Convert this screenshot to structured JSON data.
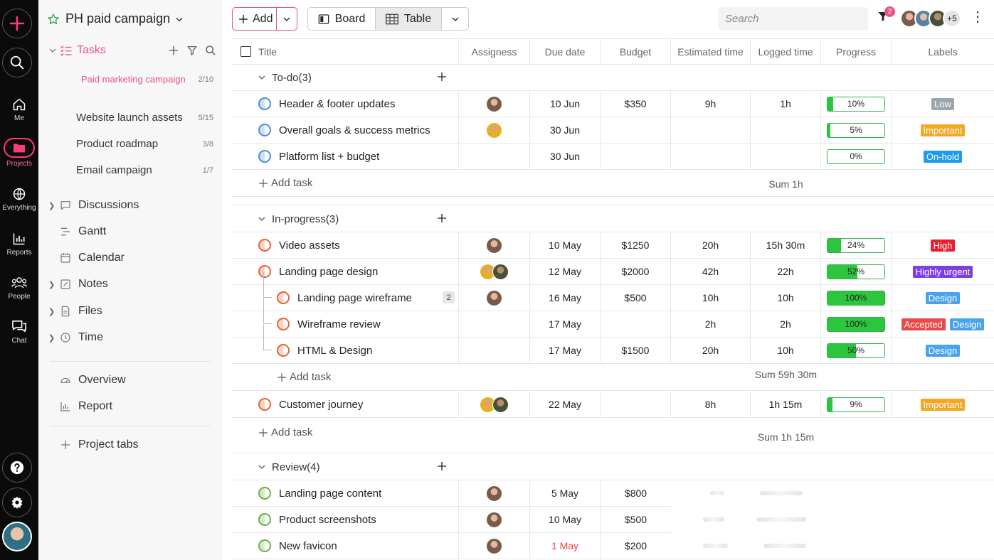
{
  "rail": {
    "items": [
      {
        "label": "Me",
        "icon": "home-icon"
      },
      {
        "label": "Projects",
        "icon": "folder-icon"
      },
      {
        "label": "Everything",
        "icon": "globe-icon"
      },
      {
        "label": "Reports",
        "icon": "bar-chart-icon"
      },
      {
        "label": "People",
        "icon": "people-icon"
      },
      {
        "label": "Chat",
        "icon": "chat-icon"
      }
    ],
    "accent": "#ff3b7a"
  },
  "sidebar": {
    "project_title": "PH paid campaign",
    "tasks_label": "Tasks",
    "task_lists": [
      {
        "label": "Paid marketing campaign",
        "count": "2/10"
      },
      {
        "label": "Website launch assets",
        "count": "5/15"
      },
      {
        "label": "Product roadmap",
        "count": "3/8"
      },
      {
        "label": "Email campaign",
        "count": "1/7"
      }
    ],
    "nav": [
      {
        "label": "Discussions",
        "icon": "chat-bubble-icon"
      },
      {
        "label": "Gantt",
        "icon": "gantt-icon"
      },
      {
        "label": "Calendar",
        "icon": "calendar-icon"
      },
      {
        "label": "Notes",
        "icon": "notes-icon"
      },
      {
        "label": "Files",
        "icon": "file-icon"
      },
      {
        "label": "Time",
        "icon": "clock-icon"
      }
    ],
    "overview_label": "Overview",
    "report_label": "Report",
    "project_tabs_label": "Project tabs"
  },
  "toolbar": {
    "add_label": "Add",
    "board_label": "Board",
    "table_label": "Table",
    "search_placeholder": "Search",
    "filter_count": "2",
    "more_members": "+5"
  },
  "table": {
    "columns": [
      "Title",
      "Assigness",
      "Due date",
      "Budget",
      "Estimated time",
      "Logged time",
      "Progress",
      "Labels"
    ],
    "groups": [
      {
        "name": "To-do(3)",
        "rows": [
          {
            "title": "Header & footer updates",
            "due": "10 Jun",
            "budget": "$350",
            "est": "9h",
            "logged": "1h",
            "progress": "10%",
            "labels": [
              "Low"
            ]
          },
          {
            "title": "Overall goals & success metrics",
            "due": "30 Jun",
            "budget": "",
            "est": "",
            "logged": "",
            "progress": "5%",
            "labels": [
              "Important"
            ]
          },
          {
            "title": "Platform list + budget",
            "due": "30 Jun",
            "budget": "",
            "est": "",
            "logged": "",
            "progress": "0%",
            "labels": [
              "On-hold"
            ]
          }
        ],
        "add_task": "Add task",
        "sum": "Sum 1h"
      },
      {
        "name": "In-progress(3)",
        "rows": [
          {
            "title": "Video assets",
            "due": "10 May",
            "budget": "$1250",
            "est": "20h",
            "logged": "15h 30m",
            "progress": "24%",
            "labels": [
              "High"
            ]
          },
          {
            "title": "Landing page design",
            "due": "12 May",
            "budget": "$2000",
            "est": "42h",
            "logged": "22h",
            "progress": "52%",
            "labels": [
              "Highly urgent"
            ]
          },
          {
            "title": "Landing page wireframe",
            "subcount": "2",
            "due": "16 May",
            "budget": "$500",
            "est": "10h",
            "logged": "10h",
            "progress": "100%",
            "labels": [
              "Design"
            ]
          },
          {
            "title": "Wireframe review",
            "due": "17 May",
            "budget": "",
            "est": "2h",
            "logged": "2h",
            "progress": "100%",
            "labels": [
              "Accepted",
              "Design"
            ]
          },
          {
            "title": "HTML & Design",
            "due": "17 May",
            "budget": "$1500",
            "est": "20h",
            "logged": "10h",
            "progress": "50%",
            "labels": [
              "Design"
            ]
          }
        ],
        "sub_add_task": "Add task",
        "sub_sum": "Sum 59h 30m",
        "extra_row": {
          "title": "Customer journey",
          "due": "22 May",
          "budget": "",
          "est": "8h",
          "logged": "1h 15m",
          "progress": "9%",
          "labels": [
            "Important"
          ]
        },
        "add_task": "Add task",
        "sum": "Sum 1h 15m"
      },
      {
        "name": "Review(4)",
        "rows": [
          {
            "title": "Landing page content",
            "due": "5 May",
            "budget": "$800"
          },
          {
            "title": "Product screenshots",
            "due": "10 May",
            "budget": "$500"
          },
          {
            "title": "New favicon",
            "due": "1 May",
            "budget": "$200"
          }
        ]
      }
    ],
    "label_colors": {
      "Low": "#9aa5ad",
      "Important": "#f5a623",
      "On-hold": "#1e9be9",
      "High": "#e8202e",
      "Highly urgent": "#7b3fe4",
      "Design": "#4aa3e8",
      "Accepted": "#e84a4a"
    }
  }
}
